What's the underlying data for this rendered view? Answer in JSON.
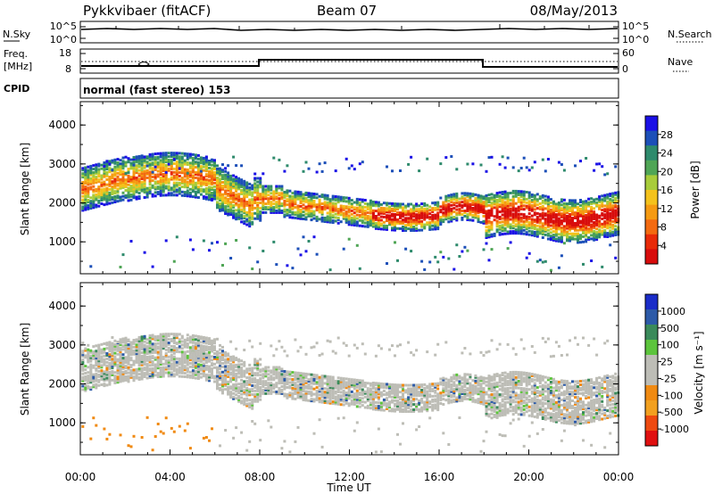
{
  "header": {
    "station": "Pykkvibaer (fitACF)",
    "beam": "Beam 07",
    "date": "08/May/2013"
  },
  "nsky_panel": {
    "left_label": "N.Sky",
    "left_ticks": [
      "10^5",
      "10^0"
    ],
    "right_label": "N.Search",
    "right_ticks": [
      "10^5",
      "10^0"
    ]
  },
  "freq_panel": {
    "left_label_1": "Freq.",
    "left_label_2": "[MHz]",
    "left_ticks": [
      "18",
      "8"
    ],
    "right_label": "Nave",
    "right_ticks": [
      "60",
      "0"
    ]
  },
  "cpid_panel": {
    "label": "CPID",
    "mode": "normal (fast stereo) 153"
  },
  "chart_data": [
    {
      "type": "heatmap",
      "title": "",
      "xlabel": "Time UT",
      "ylabel": "Slant Range [km]",
      "x_ticks": [
        "00:00",
        "04:00",
        "08:00",
        "12:00",
        "16:00",
        "20:00",
        "00:00"
      ],
      "y_ticks": [
        "1000",
        "2000",
        "3000",
        "4000"
      ],
      "ylim": [
        180,
        4600
      ],
      "colorbar_label": "Power [dB]",
      "colorbar_ticks": [
        "4",
        "8",
        "12",
        "16",
        "20",
        "24",
        "28"
      ],
      "colorbar_colors": [
        "#1a10e6",
        "#1c4fb8",
        "#2e8a6c",
        "#4fa555",
        "#a8cc3a",
        "#f4c21c",
        "#f59a12",
        "#f36a10",
        "#e82a08",
        "#d80c0c"
      ]
    },
    {
      "type": "heatmap",
      "title": "",
      "xlabel": "Time UT",
      "ylabel": "Slant Range [km]",
      "x_ticks": [
        "00:00",
        "04:00",
        "08:00",
        "12:00",
        "16:00",
        "20:00",
        "00:00"
      ],
      "y_ticks": [
        "1000",
        "2000",
        "3000",
        "4000"
      ],
      "ylim": [
        180,
        4600
      ],
      "colorbar_label": "Velocity [m s⁻¹]",
      "colorbar_ticks": [
        "1000",
        "500",
        "100",
        "25",
        "-25",
        "-100",
        "-500",
        "-1000"
      ],
      "colorbar_colors": [
        "#1a2cc8",
        "#2c5aa8",
        "#3a8a5a",
        "#5cc43c",
        "#bdbdb6",
        "#bdbdb6",
        "#f08a12",
        "#f2a020",
        "#ee4a10",
        "#e01010"
      ]
    }
  ],
  "colors": {
    "ground_scatter": "#bdbdb6"
  },
  "time_axis": {
    "label": "Time UT"
  }
}
